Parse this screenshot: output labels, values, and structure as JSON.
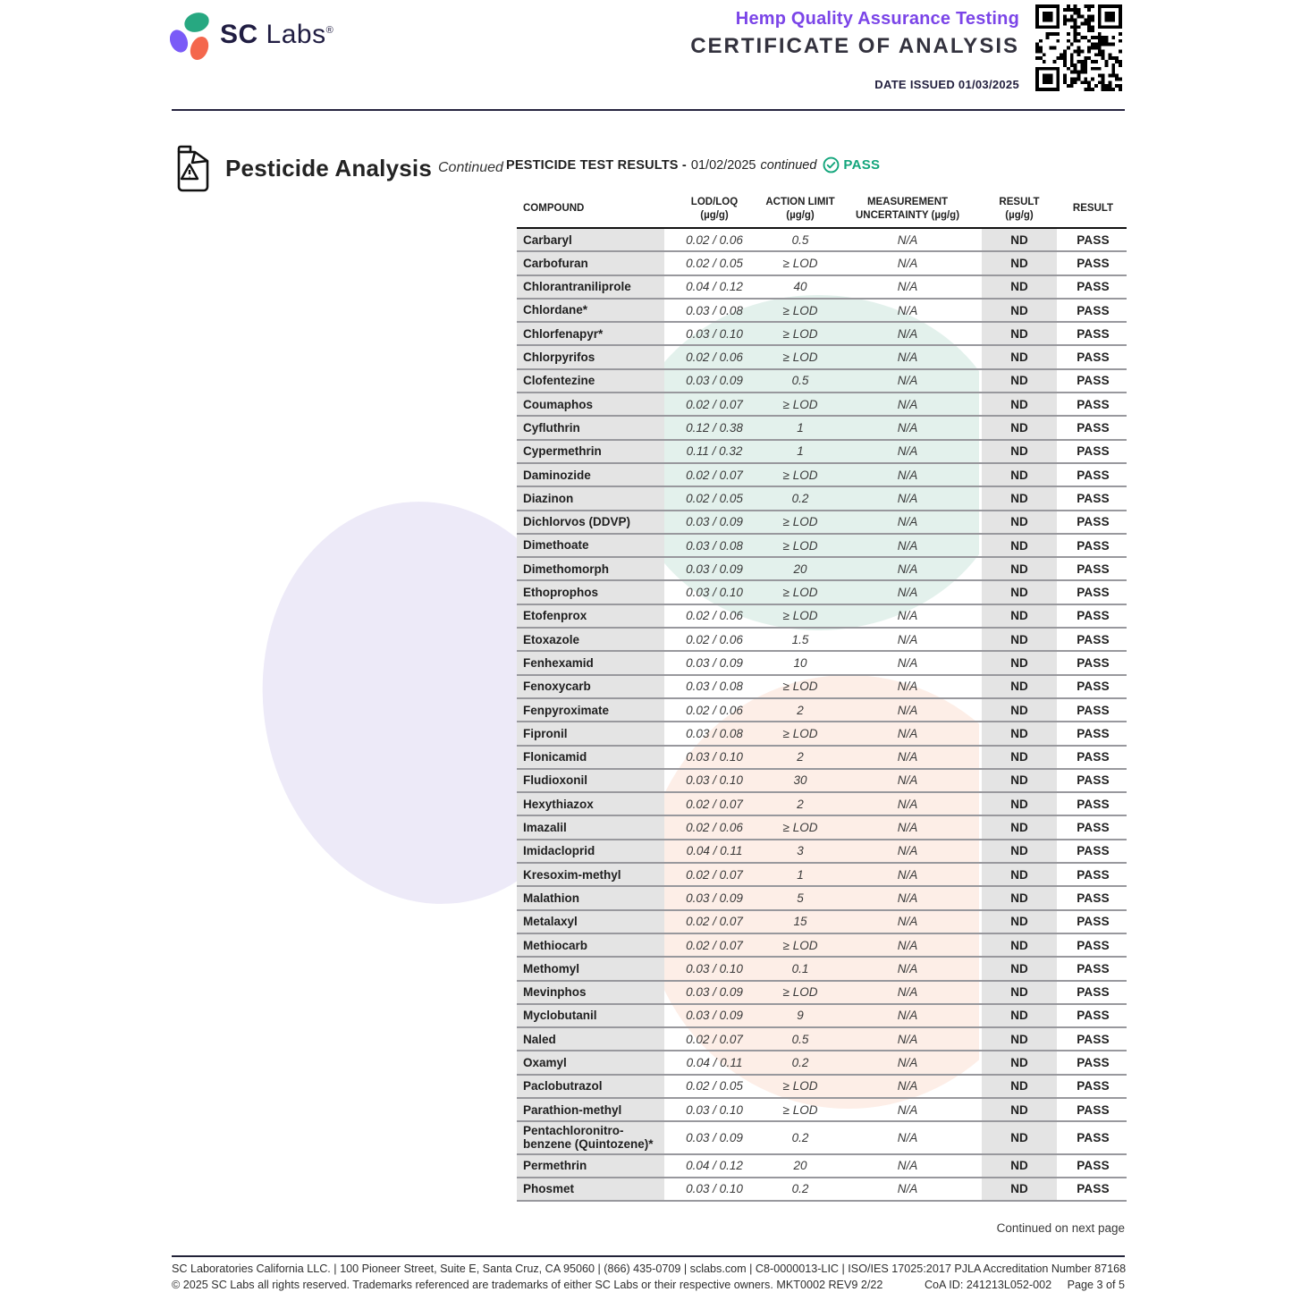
{
  "header": {
    "brand": {
      "bold": "SC",
      "regular": "Labs",
      "registered": "®"
    },
    "program": "Hemp Quality Assurance Testing",
    "title": "CERTIFICATE OF ANALYSIS",
    "date_issued": "DATE ISSUED 01/03/2025"
  },
  "section": {
    "title": "Pesticide Analysis",
    "continued": "Continued"
  },
  "results": {
    "label": "PESTICIDE TEST RESULTS -",
    "date": "01/02/2025",
    "suffix": "continued",
    "status": "PASS"
  },
  "table": {
    "columns": [
      {
        "l1": "COMPOUND",
        "l2": ""
      },
      {
        "l1": "LOD/LOQ",
        "l2": "(µg/g)"
      },
      {
        "l1": "ACTION LIMIT",
        "l2": "(µg/g)"
      },
      {
        "l1": "MEASUREMENT",
        "l2": "UNCERTAINTY (µg/g)"
      },
      {
        "l1": "RESULT",
        "l2": "(µg/g)"
      },
      {
        "l1": "RESULT",
        "l2": ""
      }
    ],
    "rows": [
      {
        "compound": "Carbaryl",
        "lod_loq": "0.02 / 0.06",
        "action_limit": "0.5",
        "uncertainty": "N/A",
        "result": "ND",
        "status": "PASS"
      },
      {
        "compound": "Carbofuran",
        "lod_loq": "0.02 / 0.05",
        "action_limit": "≥ LOD",
        "uncertainty": "N/A",
        "result": "ND",
        "status": "PASS"
      },
      {
        "compound": "Chlorantraniliprole",
        "lod_loq": "0.04 / 0.12",
        "action_limit": "40",
        "uncertainty": "N/A",
        "result": "ND",
        "status": "PASS"
      },
      {
        "compound": "Chlordane*",
        "lod_loq": "0.03 / 0.08",
        "action_limit": "≥ LOD",
        "uncertainty": "N/A",
        "result": "ND",
        "status": "PASS"
      },
      {
        "compound": "Chlorfenapyr*",
        "lod_loq": "0.03 / 0.10",
        "action_limit": "≥ LOD",
        "uncertainty": "N/A",
        "result": "ND",
        "status": "PASS"
      },
      {
        "compound": "Chlorpyrifos",
        "lod_loq": "0.02 / 0.06",
        "action_limit": "≥ LOD",
        "uncertainty": "N/A",
        "result": "ND",
        "status": "PASS"
      },
      {
        "compound": "Clofentezine",
        "lod_loq": "0.03 / 0.09",
        "action_limit": "0.5",
        "uncertainty": "N/A",
        "result": "ND",
        "status": "PASS"
      },
      {
        "compound": "Coumaphos",
        "lod_loq": "0.02 / 0.07",
        "action_limit": "≥ LOD",
        "uncertainty": "N/A",
        "result": "ND",
        "status": "PASS"
      },
      {
        "compound": "Cyfluthrin",
        "lod_loq": "0.12 / 0.38",
        "action_limit": "1",
        "uncertainty": "N/A",
        "result": "ND",
        "status": "PASS"
      },
      {
        "compound": "Cypermethrin",
        "lod_loq": "0.11 / 0.32",
        "action_limit": "1",
        "uncertainty": "N/A",
        "result": "ND",
        "status": "PASS"
      },
      {
        "compound": "Daminozide",
        "lod_loq": "0.02 / 0.07",
        "action_limit": "≥ LOD",
        "uncertainty": "N/A",
        "result": "ND",
        "status": "PASS"
      },
      {
        "compound": "Diazinon",
        "lod_loq": "0.02 / 0.05",
        "action_limit": "0.2",
        "uncertainty": "N/A",
        "result": "ND",
        "status": "PASS"
      },
      {
        "compound": "Dichlorvos (DDVP)",
        "lod_loq": "0.03 / 0.09",
        "action_limit": "≥ LOD",
        "uncertainty": "N/A",
        "result": "ND",
        "status": "PASS"
      },
      {
        "compound": "Dimethoate",
        "lod_loq": "0.03 / 0.08",
        "action_limit": "≥ LOD",
        "uncertainty": "N/A",
        "result": "ND",
        "status": "PASS"
      },
      {
        "compound": "Dimethomorph",
        "lod_loq": "0.03 / 0.09",
        "action_limit": "20",
        "uncertainty": "N/A",
        "result": "ND",
        "status": "PASS"
      },
      {
        "compound": "Ethoprophos",
        "lod_loq": "0.03 / 0.10",
        "action_limit": "≥ LOD",
        "uncertainty": "N/A",
        "result": "ND",
        "status": "PASS"
      },
      {
        "compound": "Etofenprox",
        "lod_loq": "0.02 / 0.06",
        "action_limit": "≥ LOD",
        "uncertainty": "N/A",
        "result": "ND",
        "status": "PASS"
      },
      {
        "compound": "Etoxazole",
        "lod_loq": "0.02 / 0.06",
        "action_limit": "1.5",
        "uncertainty": "N/A",
        "result": "ND",
        "status": "PASS"
      },
      {
        "compound": "Fenhexamid",
        "lod_loq": "0.03 / 0.09",
        "action_limit": "10",
        "uncertainty": "N/A",
        "result": "ND",
        "status": "PASS"
      },
      {
        "compound": "Fenoxycarb",
        "lod_loq": "0.03 / 0.08",
        "action_limit": "≥ LOD",
        "uncertainty": "N/A",
        "result": "ND",
        "status": "PASS"
      },
      {
        "compound": "Fenpyroximate",
        "lod_loq": "0.02 / 0.06",
        "action_limit": "2",
        "uncertainty": "N/A",
        "result": "ND",
        "status": "PASS"
      },
      {
        "compound": "Fipronil",
        "lod_loq": "0.03 / 0.08",
        "action_limit": "≥ LOD",
        "uncertainty": "N/A",
        "result": "ND",
        "status": "PASS"
      },
      {
        "compound": "Flonicamid",
        "lod_loq": "0.03 / 0.10",
        "action_limit": "2",
        "uncertainty": "N/A",
        "result": "ND",
        "status": "PASS"
      },
      {
        "compound": "Fludioxonil",
        "lod_loq": "0.03 / 0.10",
        "action_limit": "30",
        "uncertainty": "N/A",
        "result": "ND",
        "status": "PASS"
      },
      {
        "compound": "Hexythiazox",
        "lod_loq": "0.02 / 0.07",
        "action_limit": "2",
        "uncertainty": "N/A",
        "result": "ND",
        "status": "PASS"
      },
      {
        "compound": "Imazalil",
        "lod_loq": "0.02 / 0.06",
        "action_limit": "≥ LOD",
        "uncertainty": "N/A",
        "result": "ND",
        "status": "PASS"
      },
      {
        "compound": "Imidacloprid",
        "lod_loq": "0.04 / 0.11",
        "action_limit": "3",
        "uncertainty": "N/A",
        "result": "ND",
        "status": "PASS"
      },
      {
        "compound": "Kresoxim-methyl",
        "lod_loq": "0.02 / 0.07",
        "action_limit": "1",
        "uncertainty": "N/A",
        "result": "ND",
        "status": "PASS"
      },
      {
        "compound": "Malathion",
        "lod_loq": "0.03 / 0.09",
        "action_limit": "5",
        "uncertainty": "N/A",
        "result": "ND",
        "status": "PASS"
      },
      {
        "compound": "Metalaxyl",
        "lod_loq": "0.02 / 0.07",
        "action_limit": "15",
        "uncertainty": "N/A",
        "result": "ND",
        "status": "PASS"
      },
      {
        "compound": "Methiocarb",
        "lod_loq": "0.02 / 0.07",
        "action_limit": "≥ LOD",
        "uncertainty": "N/A",
        "result": "ND",
        "status": "PASS"
      },
      {
        "compound": "Methomyl",
        "lod_loq": "0.03 / 0.10",
        "action_limit": "0.1",
        "uncertainty": "N/A",
        "result": "ND",
        "status": "PASS"
      },
      {
        "compound": "Mevinphos",
        "lod_loq": "0.03 / 0.09",
        "action_limit": "≥ LOD",
        "uncertainty": "N/A",
        "result": "ND",
        "status": "PASS"
      },
      {
        "compound": "Myclobutanil",
        "lod_loq": "0.03 / 0.09",
        "action_limit": "9",
        "uncertainty": "N/A",
        "result": "ND",
        "status": "PASS"
      },
      {
        "compound": "Naled",
        "lod_loq": "0.02 / 0.07",
        "action_limit": "0.5",
        "uncertainty": "N/A",
        "result": "ND",
        "status": "PASS"
      },
      {
        "compound": "Oxamyl",
        "lod_loq": "0.04 / 0.11",
        "action_limit": "0.2",
        "uncertainty": "N/A",
        "result": "ND",
        "status": "PASS"
      },
      {
        "compound": "Paclobutrazol",
        "lod_loq": "0.02 / 0.05",
        "action_limit": "≥ LOD",
        "uncertainty": "N/A",
        "result": "ND",
        "status": "PASS"
      },
      {
        "compound": "Parathion-methyl",
        "lod_loq": "0.03 / 0.10",
        "action_limit": "≥ LOD",
        "uncertainty": "N/A",
        "result": "ND",
        "status": "PASS"
      },
      {
        "compound": "Pentachloronitro-benzene (Quintozene)*",
        "lod_loq": "0.03 / 0.09",
        "action_limit": "0.2",
        "uncertainty": "N/A",
        "result": "ND",
        "status": "PASS"
      },
      {
        "compound": "Permethrin",
        "lod_loq": "0.04 / 0.12",
        "action_limit": "20",
        "uncertainty": "N/A",
        "result": "ND",
        "status": "PASS"
      },
      {
        "compound": "Phosmet",
        "lod_loq": "0.03 / 0.10",
        "action_limit": "0.2",
        "uncertainty": "N/A",
        "result": "ND",
        "status": "PASS"
      }
    ]
  },
  "footer": {
    "continued": "Continued on next page",
    "line1": "SC Laboratories California LLC. | 100 Pioneer Street, Suite E, Santa Cruz, CA 95060 | (866) 435-0709 | sclabs.com | C8-0000013-LIC | ISO/IES 17025:2017 PJLA Accreditation Number 87168",
    "line2": "© 2025 SC Labs all rights reserved. Trademarks referenced are trademarks of either SC Labs or their respective owners. MKT0002 REV9 2/22",
    "coa_id": "CoA ID: 241213L052-002",
    "page": "Page 3 of 5"
  },
  "colors": {
    "purple": "#7b45e8",
    "pass_green": "#12a57b",
    "navy": "#201d42"
  }
}
